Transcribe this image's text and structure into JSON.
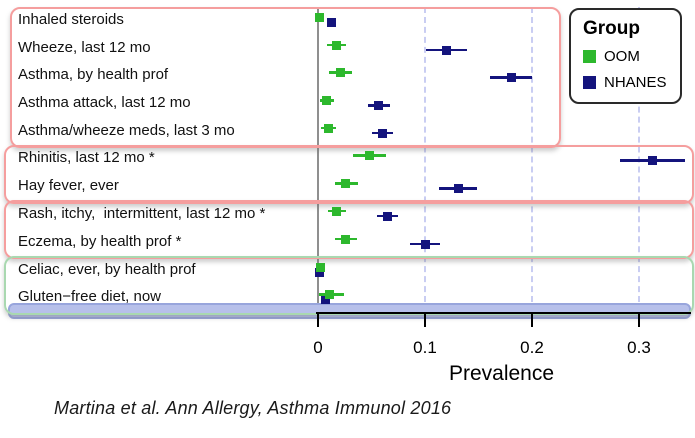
{
  "chart_data": {
    "type": "scatter",
    "subtype": "forest-dot-plot-with-error-bars",
    "title": "",
    "xlabel": "Prevalence",
    "xlim": [
      -0.005,
      0.349
    ],
    "x_ticks": [
      0,
      0.1,
      0.2,
      0.3
    ],
    "x_tick_labels": [
      "0",
      "0.1",
      "0.2",
      "0.3"
    ],
    "grid": "vertical dashed lines at 0.1, 0.2, 0.3; solid gray line at 0",
    "categories": [
      "Inhaled steroids",
      "Wheeze, last 12 mo",
      "Asthma, by health prof",
      "Asthma attack, last 12 mo",
      "Asthma/wheeze meds, last 3 mo",
      "Rhinitis, last 12 mo *",
      "Hay fever, ever",
      "Rash, itchy,  intermittent, last 12 mo *",
      "Eczema, by health prof *",
      "Celiac, ever, by health prof",
      "Gluten−free diet, now"
    ],
    "series": [
      {
        "name": "NHANES",
        "color": "#14147d",
        "values": [
          {
            "v": 0.013,
            "lo": 0.013,
            "hi": 0.013
          },
          {
            "v": 0.12,
            "lo": 0.101,
            "hi": 0.139
          },
          {
            "v": 0.181,
            "lo": 0.161,
            "hi": 0.2
          },
          {
            "v": 0.057,
            "lo": 0.047,
            "hi": 0.067
          },
          {
            "v": 0.06,
            "lo": 0.05,
            "hi": 0.07
          },
          {
            "v": 0.313,
            "lo": 0.282,
            "hi": 0.343
          },
          {
            "v": 0.131,
            "lo": 0.113,
            "hi": 0.149
          },
          {
            "v": 0.065,
            "lo": 0.055,
            "hi": 0.075
          },
          {
            "v": 0.1,
            "lo": 0.086,
            "hi": 0.114
          },
          {
            "v": 0.001,
            "lo": 0.001,
            "hi": 0.001
          },
          {
            "v": 0.007,
            "lo": 0.004,
            "hi": 0.011
          }
        ]
      },
      {
        "name": "OOM",
        "color": "#2db82d",
        "values": [
          {
            "v": 0.001,
            "lo": 0.001,
            "hi": 0.001
          },
          {
            "v": 0.017,
            "lo": 0.008,
            "hi": 0.026
          },
          {
            "v": 0.021,
            "lo": 0.01,
            "hi": 0.032
          },
          {
            "v": 0.008,
            "lo": 0.002,
            "hi": 0.015
          },
          {
            "v": 0.01,
            "lo": 0.003,
            "hi": 0.017
          },
          {
            "v": 0.048,
            "lo": 0.033,
            "hi": 0.064
          },
          {
            "v": 0.026,
            "lo": 0.016,
            "hi": 0.037
          },
          {
            "v": 0.017,
            "lo": 0.009,
            "hi": 0.026
          },
          {
            "v": 0.026,
            "lo": 0.016,
            "hi": 0.036
          },
          {
            "v": 0.002,
            "lo": 0.002,
            "hi": 0.002
          },
          {
            "v": 0.011,
            "lo": 0.001,
            "hi": 0.024
          }
        ]
      }
    ],
    "legend": {
      "title": "Group",
      "position": "top-right",
      "items": [
        {
          "label": "OOM",
          "color": "#2db82d"
        },
        {
          "label": "NHANES",
          "color": "#14147d"
        }
      ]
    },
    "group_boxes": [
      {
        "rows": [
          0,
          4
        ],
        "border_color": "#f59e9e"
      },
      {
        "rows": [
          5,
          6
        ],
        "border_color": "#f59e9e"
      },
      {
        "rows": [
          7,
          8
        ],
        "border_color": "#f59e9e"
      },
      {
        "rows": [
          9,
          10
        ],
        "border_color": "#a9d8b0"
      }
    ],
    "bottom_strip_color": "#b7c0ea",
    "zero_line_color": "#8f8f8f",
    "gridline_color": "#c9cdf2"
  },
  "caption": "Martina et al. Ann Allergy, Asthma Immunol 2016"
}
